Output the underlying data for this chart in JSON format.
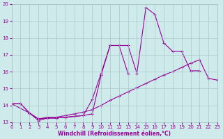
{
  "xlabel": "Windchill (Refroidissement éolien,°C)",
  "background_color": "#ceeaea",
  "line_color": "#990099",
  "xlim": [
    0,
    23
  ],
  "ylim": [
    13,
    20
  ],
  "yticks": [
    13,
    14,
    15,
    16,
    17,
    18,
    19,
    20
  ],
  "xticks": [
    0,
    1,
    2,
    3,
    4,
    5,
    6,
    7,
    8,
    9,
    10,
    11,
    12,
    13,
    14,
    15,
    16,
    17,
    18,
    19,
    20,
    21,
    22,
    23
  ],
  "line1_x": [
    0,
    1,
    2,
    3,
    4,
    5,
    6,
    7,
    8,
    9,
    10,
    11,
    12,
    13,
    14,
    15,
    16,
    17,
    18,
    19,
    20,
    21
  ],
  "line1_y": [
    14.1,
    14.1,
    13.55,
    13.1,
    13.25,
    13.25,
    13.3,
    13.35,
    13.4,
    13.5,
    15.8,
    17.55,
    17.55,
    17.55,
    15.9,
    19.8,
    19.4,
    17.7,
    17.2,
    17.2,
    16.05,
    16.05
  ],
  "line2_x": [
    0,
    1,
    2,
    3,
    4,
    5,
    6,
    7,
    8,
    9,
    10,
    11,
    12,
    13
  ],
  "line2_y": [
    14.1,
    14.1,
    13.55,
    13.2,
    13.25,
    13.25,
    13.3,
    13.35,
    13.4,
    14.35,
    15.9,
    17.55,
    17.55,
    15.9
  ],
  "line3_x": [
    0,
    2,
    3,
    4,
    5,
    6,
    7,
    8,
    9,
    10,
    11,
    12,
    13,
    14,
    15,
    16,
    17,
    18,
    19,
    20,
    21,
    22,
    23
  ],
  "line3_y": [
    14.1,
    13.55,
    13.2,
    13.3,
    13.3,
    13.4,
    13.5,
    13.6,
    13.75,
    14.0,
    14.3,
    14.55,
    14.8,
    15.05,
    15.3,
    15.55,
    15.8,
    16.0,
    16.25,
    16.5,
    16.7,
    15.6,
    15.5
  ]
}
